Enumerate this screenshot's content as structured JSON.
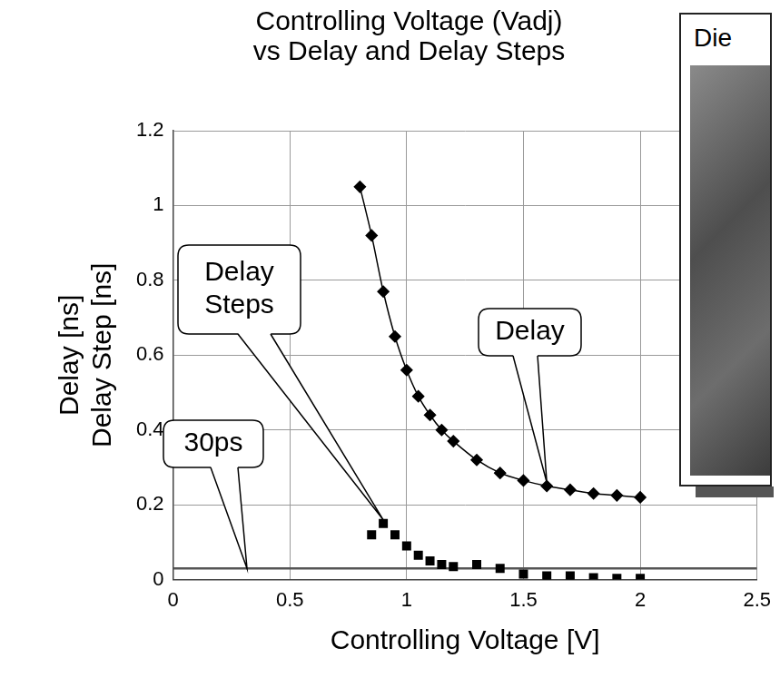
{
  "chart_data": {
    "type": "line",
    "title": "Controlling Voltage (Vadj) vs Delay and Delay Steps",
    "x_label": "Controlling Voltage [V]",
    "y_label": [
      "Delay [ns]",
      "Delay Step [ns]"
    ],
    "inset_title": "Die",
    "xlim": [
      0,
      2.5
    ],
    "xticks": [
      0,
      0.5,
      1,
      1.5,
      2,
      2.5
    ],
    "ylim": [
      0,
      1.2
    ],
    "yticks": [
      0,
      0.2,
      0.4,
      0.6,
      0.8,
      1,
      1.2
    ],
    "grid": true,
    "series": [
      {
        "name": "Delay",
        "type": "line",
        "color": "#000000",
        "marker": "diamond",
        "line_style": "solid",
        "x": [
          0.8,
          0.85,
          0.9,
          0.95,
          1.0,
          1.05,
          1.1,
          1.15,
          1.2,
          1.3,
          1.4,
          1.5,
          1.6,
          1.7,
          1.8,
          1.9,
          2.0
        ],
        "values": [
          1.05,
          0.92,
          0.77,
          0.65,
          0.56,
          0.49,
          0.44,
          0.4,
          0.37,
          0.32,
          0.285,
          0.265,
          0.25,
          0.24,
          0.23,
          0.225,
          0.22
        ]
      },
      {
        "name": "Delay Steps",
        "type": "scatter",
        "color": "#000000",
        "marker": "square",
        "line_style": "none",
        "x": [
          0.85,
          0.9,
          0.95,
          1.0,
          1.05,
          1.1,
          1.15,
          1.2,
          1.3,
          1.4,
          1.5,
          1.6,
          1.7,
          1.8,
          1.9,
          2.0
        ],
        "values": [
          0.12,
          0.15,
          0.12,
          0.09,
          0.065,
          0.05,
          0.04,
          0.035,
          0.04,
          0.03,
          0.015,
          0.01,
          0.01,
          0.005,
          0.003,
          0.003
        ]
      }
    ],
    "reference_lines": [
      {
        "value": 0.03,
        "label": "30ps",
        "color": "#555555"
      }
    ]
  }
}
